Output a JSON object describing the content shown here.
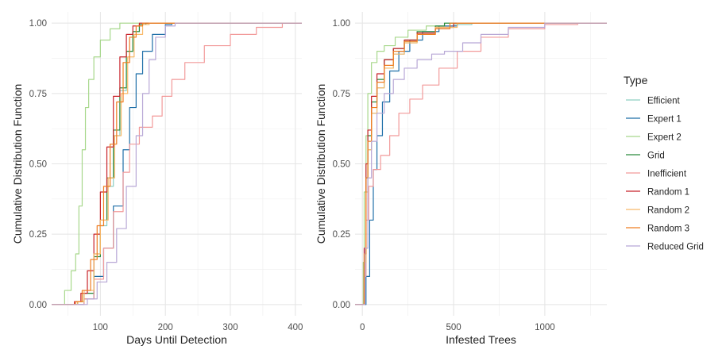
{
  "legend": {
    "title": "Type",
    "position": "right"
  },
  "series_styles": [
    {
      "name": "Efficient",
      "color": "#8ecfc2"
    },
    {
      "name": "Expert 1",
      "color": "#1f6fa8"
    },
    {
      "name": "Expert 2",
      "color": "#a8d88c"
    },
    {
      "name": "Grid",
      "color": "#2a8a3c"
    },
    {
      "name": "Inefficient",
      "color": "#f29a9a"
    },
    {
      "name": "Random 1",
      "color": "#c8232a"
    },
    {
      "name": "Random 2",
      "color": "#f8b96a"
    },
    {
      "name": "Random 3",
      "color": "#ef7e22"
    },
    {
      "name": "Reduced Grid",
      "color": "#b8a8d6"
    }
  ],
  "chart_data": [
    {
      "type": "line",
      "xlabel": "Days Until Detection",
      "ylabel": "Cumulative Distribution Function",
      "xlim": [
        25,
        410
      ],
      "ylim": [
        -0.04,
        1.04
      ],
      "xticks": [
        100,
        200,
        300,
        400
      ],
      "yticks": [
        0.0,
        0.25,
        0.5,
        0.75,
        1.0
      ],
      "ytick_labels": [
        "0.00",
        "0.25",
        "0.50",
        "0.75",
        "1.00"
      ],
      "grid": true,
      "series": [
        {
          "name": "Efficient",
          "points": [
            [
              50,
              0
            ],
            [
              65,
              0.01
            ],
            [
              75,
              0.04
            ],
            [
              90,
              0.18
            ],
            [
              100,
              0.28
            ],
            [
              110,
              0.42
            ],
            [
              120,
              0.6
            ],
            [
              130,
              0.76
            ],
            [
              140,
              0.9
            ],
            [
              150,
              0.97
            ],
            [
              160,
              0.995
            ],
            [
              175,
              1
            ]
          ]
        },
        {
          "name": "Expert 1",
          "points": [
            [
              60,
              0
            ],
            [
              75,
              0.02
            ],
            [
              90,
              0.1
            ],
            [
              105,
              0.2
            ],
            [
              120,
              0.35
            ],
            [
              135,
              0.55
            ],
            [
              145,
              0.7
            ],
            [
              155,
              0.82
            ],
            [
              165,
              0.9
            ],
            [
              180,
              0.96
            ],
            [
              200,
              0.995
            ],
            [
              210,
              1
            ]
          ]
        },
        {
          "name": "Expert 2",
          "points": [
            [
              35,
              0
            ],
            [
              45,
              0.05
            ],
            [
              55,
              0.12
            ],
            [
              62,
              0.18
            ],
            [
              67,
              0.35
            ],
            [
              72,
              0.55
            ],
            [
              77,
              0.7
            ],
            [
              82,
              0.8
            ],
            [
              90,
              0.88
            ],
            [
              100,
              0.94
            ],
            [
              115,
              0.98
            ],
            [
              130,
              1
            ]
          ]
        },
        {
          "name": "Grid",
          "points": [
            [
              50,
              0
            ],
            [
              65,
              0.01
            ],
            [
              75,
              0.04
            ],
            [
              90,
              0.17
            ],
            [
              100,
              0.3
            ],
            [
              110,
              0.45
            ],
            [
              120,
              0.62
            ],
            [
              130,
              0.77
            ],
            [
              140,
              0.9
            ],
            [
              150,
              0.97
            ],
            [
              160,
              0.995
            ],
            [
              170,
              1
            ]
          ]
        },
        {
          "name": "Inefficient",
          "points": [
            [
              60,
              0
            ],
            [
              75,
              0.02
            ],
            [
              90,
              0.09
            ],
            [
              105,
              0.2
            ],
            [
              120,
              0.33
            ],
            [
              135,
              0.47
            ],
            [
              145,
              0.57
            ],
            [
              160,
              0.63
            ],
            [
              180,
              0.67
            ],
            [
              195,
              0.74
            ],
            [
              210,
              0.8
            ],
            [
              230,
              0.86
            ],
            [
              260,
              0.92
            ],
            [
              300,
              0.96
            ],
            [
              340,
              0.985
            ],
            [
              380,
              1
            ]
          ]
        },
        {
          "name": "Random 1",
          "points": [
            [
              50,
              0
            ],
            [
              60,
              0.01
            ],
            [
              70,
              0.04
            ],
            [
              80,
              0.12
            ],
            [
              90,
              0.25
            ],
            [
              100,
              0.4
            ],
            [
              110,
              0.56
            ],
            [
              120,
              0.74
            ],
            [
              130,
              0.88
            ],
            [
              140,
              0.96
            ],
            [
              150,
              0.99
            ],
            [
              160,
              1
            ]
          ]
        },
        {
          "name": "Random 2",
          "points": [
            [
              50,
              0
            ],
            [
              65,
              0.01
            ],
            [
              75,
              0.05
            ],
            [
              90,
              0.18
            ],
            [
              100,
              0.3
            ],
            [
              112,
              0.45
            ],
            [
              122,
              0.6
            ],
            [
              132,
              0.75
            ],
            [
              142,
              0.88
            ],
            [
              152,
              0.96
            ],
            [
              165,
              0.995
            ],
            [
              175,
              1
            ]
          ]
        },
        {
          "name": "Random 3",
          "points": [
            [
              50,
              0
            ],
            [
              62,
              0.01
            ],
            [
              72,
              0.05
            ],
            [
              85,
              0.16
            ],
            [
              95,
              0.28
            ],
            [
              105,
              0.42
            ],
            [
              115,
              0.57
            ],
            [
              125,
              0.72
            ],
            [
              135,
              0.86
            ],
            [
              145,
              0.95
            ],
            [
              155,
              0.99
            ],
            [
              165,
              1
            ]
          ]
        },
        {
          "name": "Reduced Grid",
          "points": [
            [
              65,
              0
            ],
            [
              80,
              0.02
            ],
            [
              95,
              0.08
            ],
            [
              110,
              0.15
            ],
            [
              125,
              0.27
            ],
            [
              140,
              0.42
            ],
            [
              155,
              0.6
            ],
            [
              165,
              0.75
            ],
            [
              175,
              0.87
            ],
            [
              185,
              0.95
            ],
            [
              200,
              0.99
            ],
            [
              215,
              1
            ]
          ]
        }
      ]
    },
    {
      "type": "line",
      "xlabel": "Infested Trees",
      "ylabel": "Cumulative Distribution Function",
      "xlim": [
        -40,
        1340
      ],
      "ylim": [
        -0.04,
        1.04
      ],
      "xticks": [
        0,
        500,
        1000
      ],
      "yticks": [
        0.0,
        0.25,
        0.5,
        0.75,
        1.0
      ],
      "ytick_labels": [
        "0.00",
        "0.25",
        "0.50",
        "0.75",
        "1.00"
      ],
      "grid": true,
      "series": [
        {
          "name": "Efficient",
          "points": [
            [
              0,
              0
            ],
            [
              10,
              0.1
            ],
            [
              20,
              0.4
            ],
            [
              30,
              0.55
            ],
            [
              50,
              0.68
            ],
            [
              80,
              0.77
            ],
            [
              120,
              0.84
            ],
            [
              170,
              0.89
            ],
            [
              230,
              0.93
            ],
            [
              300,
              0.96
            ],
            [
              400,
              0.985
            ],
            [
              500,
              0.995
            ],
            [
              600,
              1
            ]
          ]
        },
        {
          "name": "Expert 1",
          "points": [
            [
              0,
              0
            ],
            [
              20,
              0.1
            ],
            [
              40,
              0.3
            ],
            [
              60,
              0.48
            ],
            [
              80,
              0.6
            ],
            [
              110,
              0.72
            ],
            [
              150,
              0.83
            ],
            [
              200,
              0.9
            ],
            [
              260,
              0.94
            ],
            [
              330,
              0.97
            ],
            [
              420,
              0.99
            ],
            [
              520,
              1
            ]
          ]
        },
        {
          "name": "Expert 2",
          "points": [
            [
              0,
              0
            ],
            [
              5,
              0.15
            ],
            [
              10,
              0.4
            ],
            [
              20,
              0.6
            ],
            [
              30,
              0.75
            ],
            [
              50,
              0.86
            ],
            [
              80,
              0.9
            ],
            [
              120,
              0.92
            ],
            [
              180,
              0.95
            ],
            [
              250,
              0.975
            ],
            [
              350,
              0.99
            ],
            [
              450,
              1
            ]
          ]
        },
        {
          "name": "Grid",
          "points": [
            [
              0,
              0
            ],
            [
              10,
              0.15
            ],
            [
              20,
              0.45
            ],
            [
              30,
              0.6
            ],
            [
              50,
              0.72
            ],
            [
              80,
              0.8
            ],
            [
              120,
              0.87
            ],
            [
              170,
              0.91
            ],
            [
              230,
              0.94
            ],
            [
              300,
              0.97
            ],
            [
              400,
              0.99
            ],
            [
              450,
              1
            ]
          ]
        },
        {
          "name": "Inefficient",
          "points": [
            [
              0,
              0
            ],
            [
              10,
              0.1
            ],
            [
              20,
              0.3
            ],
            [
              35,
              0.42
            ],
            [
              60,
              0.48
            ],
            [
              100,
              0.53
            ],
            [
              150,
              0.6
            ],
            [
              200,
              0.68
            ],
            [
              260,
              0.73
            ],
            [
              330,
              0.78
            ],
            [
              420,
              0.84
            ],
            [
              520,
              0.9
            ],
            [
              650,
              0.95
            ],
            [
              800,
              0.98
            ],
            [
              1000,
              0.995
            ],
            [
              1180,
              1
            ]
          ]
        },
        {
          "name": "Random 1",
          "points": [
            [
              0,
              0
            ],
            [
              10,
              0.2
            ],
            [
              20,
              0.5
            ],
            [
              30,
              0.62
            ],
            [
              50,
              0.74
            ],
            [
              80,
              0.82
            ],
            [
              120,
              0.87
            ],
            [
              170,
              0.91
            ],
            [
              230,
              0.94
            ],
            [
              300,
              0.965
            ],
            [
              400,
              0.985
            ],
            [
              500,
              1
            ]
          ]
        },
        {
          "name": "Random 2",
          "points": [
            [
              0,
              0
            ],
            [
              10,
              0.15
            ],
            [
              20,
              0.4
            ],
            [
              30,
              0.55
            ],
            [
              50,
              0.68
            ],
            [
              80,
              0.77
            ],
            [
              120,
              0.84
            ],
            [
              170,
              0.89
            ],
            [
              230,
              0.93
            ],
            [
              300,
              0.96
            ],
            [
              400,
              0.985
            ],
            [
              520,
              1
            ]
          ]
        },
        {
          "name": "Random 3",
          "points": [
            [
              0,
              0
            ],
            [
              10,
              0.18
            ],
            [
              20,
              0.45
            ],
            [
              30,
              0.58
            ],
            [
              50,
              0.7
            ],
            [
              80,
              0.79
            ],
            [
              120,
              0.85
            ],
            [
              170,
              0.9
            ],
            [
              230,
              0.935
            ],
            [
              300,
              0.96
            ],
            [
              400,
              0.98
            ],
            [
              480,
              1
            ]
          ]
        },
        {
          "name": "Reduced Grid",
          "points": [
            [
              0,
              0
            ],
            [
              15,
              0.2
            ],
            [
              30,
              0.45
            ],
            [
              50,
              0.58
            ],
            [
              80,
              0.68
            ],
            [
              120,
              0.75
            ],
            [
              170,
              0.8
            ],
            [
              230,
              0.84
            ],
            [
              300,
              0.87
            ],
            [
              380,
              0.89
            ],
            [
              450,
              0.9
            ],
            [
              550,
              0.93
            ],
            [
              650,
              0.96
            ],
            [
              800,
              0.985
            ],
            [
              1000,
              1
            ]
          ]
        }
      ]
    }
  ]
}
